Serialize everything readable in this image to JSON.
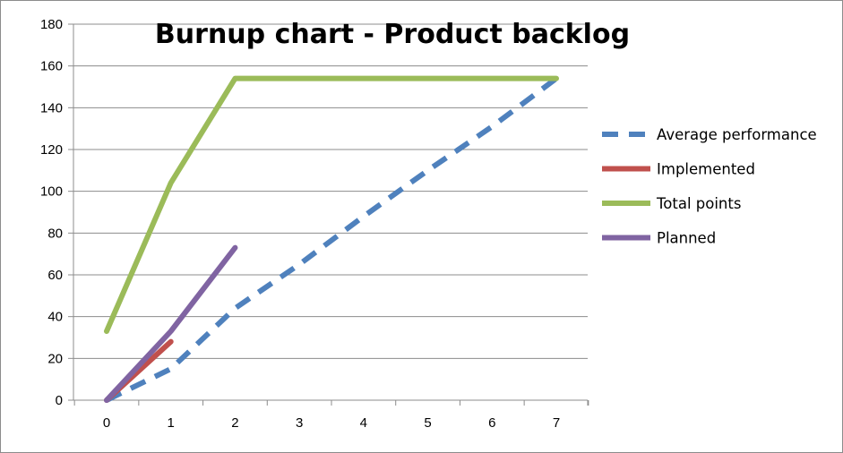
{
  "chart_data": {
    "type": "line",
    "title": "Burnup chart - Product backlog",
    "xlabel": "",
    "ylabel": "",
    "xlim": [
      0,
      7
    ],
    "ylim": [
      0,
      180
    ],
    "x_ticks": [
      "0",
      "1",
      "2",
      "3",
      "4",
      "5",
      "6",
      "7"
    ],
    "y_ticks": [
      "0",
      "20",
      "40",
      "60",
      "80",
      "100",
      "120",
      "140",
      "160",
      "180"
    ],
    "grid": "horizontal",
    "legend_position": "right",
    "series": [
      {
        "name": "Average performance",
        "color": "#4F81BD",
        "style": "dashed",
        "points": [
          [
            0,
            0
          ],
          [
            1,
            15
          ],
          [
            2,
            44
          ],
          [
            3,
            65
          ],
          [
            4,
            88
          ],
          [
            5,
            110
          ],
          [
            6,
            131
          ],
          [
            7,
            154
          ]
        ]
      },
      {
        "name": "Implemented",
        "color": "#C0504D",
        "style": "solid",
        "points": [
          [
            0,
            0
          ],
          [
            1,
            28
          ]
        ]
      },
      {
        "name": "Total points",
        "color": "#9BBB59",
        "style": "solid",
        "points": [
          [
            0,
            33
          ],
          [
            1,
            104
          ],
          [
            2,
            154
          ],
          [
            7,
            154
          ]
        ]
      },
      {
        "name": "Planned",
        "color": "#8064A2",
        "style": "solid",
        "points": [
          [
            0,
            0
          ],
          [
            1,
            33
          ],
          [
            2,
            73
          ]
        ]
      }
    ]
  }
}
